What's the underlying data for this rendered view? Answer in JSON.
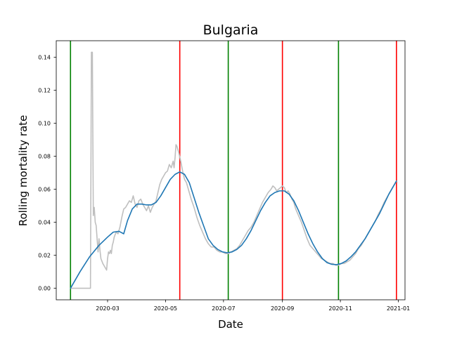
{
  "chart_data": {
    "type": "line",
    "title": "Bulgaria",
    "xlabel": "Date",
    "ylabel": "Rolling mortality rate",
    "x_range": [
      "2020-01-07",
      "2021-01-08"
    ],
    "ylim": [
      -0.007,
      0.15
    ],
    "x_ticks": [
      {
        "date": "2020-03-01",
        "label": "2020-03"
      },
      {
        "date": "2020-05-01",
        "label": "2020-05"
      },
      {
        "date": "2020-07-01",
        "label": "2020-07"
      },
      {
        "date": "2020-09-01",
        "label": "2020-09"
      },
      {
        "date": "2020-11-01",
        "label": "2020-11"
      },
      {
        "date": "2021-01-01",
        "label": "2021-01"
      }
    ],
    "y_ticks": [
      {
        "value": 0.0,
        "label": "0.00"
      },
      {
        "value": 0.02,
        "label": "0.02"
      },
      {
        "value": 0.04,
        "label": "0.04"
      },
      {
        "value": 0.06,
        "label": "0.06"
      },
      {
        "value": 0.08,
        "label": "0.08"
      },
      {
        "value": 0.1,
        "label": "0.10"
      },
      {
        "value": 0.12,
        "label": "0.12"
      },
      {
        "value": 0.14,
        "label": "0.14"
      }
    ],
    "grid": false,
    "series": [
      {
        "color": "#bfbfbf",
        "points": [
          [
            "2020-01-22",
            0.0
          ],
          [
            "2020-02-12",
            0.0
          ],
          [
            "2020-02-13",
            0.143
          ],
          [
            "2020-02-14",
            0.143
          ],
          [
            "2020-02-15",
            0.044
          ],
          [
            "2020-02-16",
            0.049
          ],
          [
            "2020-02-17",
            0.04
          ],
          [
            "2020-02-18",
            0.038
          ],
          [
            "2020-02-19",
            0.03
          ],
          [
            "2020-02-20",
            0.022
          ],
          [
            "2020-02-21",
            0.03
          ],
          [
            "2020-02-22",
            0.023
          ],
          [
            "2020-02-23",
            0.018
          ],
          [
            "2020-02-25",
            0.015
          ],
          [
            "2020-02-27",
            0.013
          ],
          [
            "2020-02-29",
            0.011
          ],
          [
            "2020-03-01",
            0.018
          ],
          [
            "2020-03-02",
            0.022
          ],
          [
            "2020-03-03",
            0.021
          ],
          [
            "2020-03-04",
            0.023
          ],
          [
            "2020-03-05",
            0.021
          ],
          [
            "2020-03-06",
            0.026
          ],
          [
            "2020-03-07",
            0.028
          ],
          [
            "2020-03-08",
            0.031
          ],
          [
            "2020-03-10",
            0.034
          ],
          [
            "2020-03-12",
            0.033
          ],
          [
            "2020-03-14",
            0.037
          ],
          [
            "2020-03-16",
            0.043
          ],
          [
            "2020-03-18",
            0.048
          ],
          [
            "2020-03-20",
            0.049
          ],
          [
            "2020-03-22",
            0.051
          ],
          [
            "2020-03-24",
            0.053
          ],
          [
            "2020-03-26",
            0.052
          ],
          [
            "2020-03-28",
            0.056
          ],
          [
            "2020-03-30",
            0.051
          ],
          [
            "2020-04-01",
            0.049
          ],
          [
            "2020-04-03",
            0.053
          ],
          [
            "2020-04-05",
            0.054
          ],
          [
            "2020-04-07",
            0.051
          ],
          [
            "2020-04-09",
            0.049
          ],
          [
            "2020-04-11",
            0.047
          ],
          [
            "2020-04-13",
            0.05
          ],
          [
            "2020-04-15",
            0.046
          ],
          [
            "2020-04-17",
            0.049
          ],
          [
            "2020-04-19",
            0.051
          ],
          [
            "2020-04-21",
            0.053
          ],
          [
            "2020-04-23",
            0.058
          ],
          [
            "2020-04-25",
            0.063
          ],
          [
            "2020-04-27",
            0.066
          ],
          [
            "2020-04-29",
            0.068
          ],
          [
            "2020-05-01",
            0.07
          ],
          [
            "2020-05-03",
            0.071
          ],
          [
            "2020-05-05",
            0.075
          ],
          [
            "2020-05-07",
            0.073
          ],
          [
            "2020-05-09",
            0.077
          ],
          [
            "2020-05-10",
            0.073
          ],
          [
            "2020-05-11",
            0.079
          ],
          [
            "2020-05-12",
            0.087
          ],
          [
            "2020-05-13",
            0.086
          ],
          [
            "2020-05-15",
            0.082
          ],
          [
            "2020-05-17",
            0.077
          ],
          [
            "2020-05-19",
            0.071
          ],
          [
            "2020-05-21",
            0.066
          ],
          [
            "2020-05-23",
            0.064
          ],
          [
            "2020-05-25",
            0.06
          ],
          [
            "2020-05-28",
            0.054
          ],
          [
            "2020-05-31",
            0.049
          ],
          [
            "2020-06-03",
            0.043
          ],
          [
            "2020-06-06",
            0.038
          ],
          [
            "2020-06-09",
            0.034
          ],
          [
            "2020-06-12",
            0.03
          ],
          [
            "2020-06-15",
            0.027
          ],
          [
            "2020-06-18",
            0.025
          ],
          [
            "2020-06-21",
            0.025
          ],
          [
            "2020-06-24",
            0.023
          ],
          [
            "2020-06-27",
            0.022
          ],
          [
            "2020-06-30",
            0.022
          ],
          [
            "2020-07-03",
            0.021
          ],
          [
            "2020-07-06",
            0.021
          ],
          [
            "2020-07-09",
            0.022
          ],
          [
            "2020-07-12",
            0.023
          ],
          [
            "2020-07-15",
            0.024
          ],
          [
            "2020-07-18",
            0.026
          ],
          [
            "2020-07-21",
            0.029
          ],
          [
            "2020-07-24",
            0.032
          ],
          [
            "2020-07-27",
            0.035
          ],
          [
            "2020-07-30",
            0.037
          ],
          [
            "2020-08-02",
            0.04
          ],
          [
            "2020-08-05",
            0.044
          ],
          [
            "2020-08-08",
            0.048
          ],
          [
            "2020-08-11",
            0.052
          ],
          [
            "2020-08-14",
            0.055
          ],
          [
            "2020-08-17",
            0.058
          ],
          [
            "2020-08-20",
            0.06
          ],
          [
            "2020-08-22",
            0.062
          ],
          [
            "2020-08-24",
            0.061
          ],
          [
            "2020-08-26",
            0.059
          ],
          [
            "2020-08-28",
            0.06
          ],
          [
            "2020-08-30",
            0.061
          ],
          [
            "2020-09-01",
            0.062
          ],
          [
            "2020-09-03",
            0.061
          ],
          [
            "2020-09-05",
            0.058
          ],
          [
            "2020-09-07",
            0.059
          ],
          [
            "2020-09-09",
            0.057
          ],
          [
            "2020-09-11",
            0.054
          ],
          [
            "2020-09-13",
            0.052
          ],
          [
            "2020-09-15",
            0.048
          ],
          [
            "2020-09-18",
            0.044
          ],
          [
            "2020-09-21",
            0.04
          ],
          [
            "2020-09-24",
            0.035
          ],
          [
            "2020-09-27",
            0.03
          ],
          [
            "2020-09-30",
            0.026
          ],
          [
            "2020-10-03",
            0.024
          ],
          [
            "2020-10-06",
            0.022
          ],
          [
            "2020-10-09",
            0.02
          ],
          [
            "2020-10-12",
            0.018
          ],
          [
            "2020-10-15",
            0.017
          ],
          [
            "2020-10-18",
            0.016
          ],
          [
            "2020-10-21",
            0.015
          ],
          [
            "2020-10-24",
            0.015
          ],
          [
            "2020-10-27",
            0.014
          ],
          [
            "2020-10-30",
            0.014
          ],
          [
            "2020-11-02",
            0.015
          ],
          [
            "2020-11-05",
            0.015
          ],
          [
            "2020-11-08",
            0.016
          ],
          [
            "2020-11-11",
            0.017
          ],
          [
            "2020-11-14",
            0.019
          ],
          [
            "2020-11-17",
            0.021
          ],
          [
            "2020-11-20",
            0.024
          ],
          [
            "2020-11-23",
            0.026
          ],
          [
            "2020-11-26",
            0.029
          ],
          [
            "2020-11-29",
            0.032
          ],
          [
            "2020-12-02",
            0.035
          ],
          [
            "2020-12-05",
            0.038
          ],
          [
            "2020-12-08",
            0.041
          ],
          [
            "2020-12-11",
            0.045
          ],
          [
            "2020-12-14",
            0.048
          ],
          [
            "2020-12-17",
            0.052
          ],
          [
            "2020-12-20",
            0.055
          ],
          [
            "2020-12-23",
            0.058
          ],
          [
            "2020-12-26",
            0.061
          ],
          [
            "2020-12-29",
            0.064
          ],
          [
            "2020-12-30",
            0.065
          ]
        ]
      },
      {
        "color": "#1f77b4",
        "points": [
          [
            "2020-01-22",
            0.0
          ],
          [
            "2020-02-01",
            0.01
          ],
          [
            "2020-02-11",
            0.019
          ],
          [
            "2020-02-21",
            0.026
          ],
          [
            "2020-03-01",
            0.031
          ],
          [
            "2020-03-07",
            0.034
          ],
          [
            "2020-03-13",
            0.0345
          ],
          [
            "2020-03-18",
            0.033
          ],
          [
            "2020-03-22",
            0.041
          ],
          [
            "2020-03-27",
            0.048
          ],
          [
            "2020-04-01",
            0.051
          ],
          [
            "2020-04-06",
            0.051
          ],
          [
            "2020-04-11",
            0.0505
          ],
          [
            "2020-04-16",
            0.0505
          ],
          [
            "2020-04-21",
            0.052
          ],
          [
            "2020-04-26",
            0.056
          ],
          [
            "2020-05-01",
            0.061
          ],
          [
            "2020-05-06",
            0.066
          ],
          [
            "2020-05-11",
            0.069
          ],
          [
            "2020-05-16",
            0.0705
          ],
          [
            "2020-05-21",
            0.069
          ],
          [
            "2020-05-26",
            0.064
          ],
          [
            "2020-05-31",
            0.055
          ],
          [
            "2020-06-05",
            0.046
          ],
          [
            "2020-06-10",
            0.038
          ],
          [
            "2020-06-15",
            0.03
          ],
          [
            "2020-06-20",
            0.026
          ],
          [
            "2020-06-25",
            0.0235
          ],
          [
            "2020-06-30",
            0.022
          ],
          [
            "2020-07-05",
            0.0215
          ],
          [
            "2020-07-10",
            0.022
          ],
          [
            "2020-07-15",
            0.0235
          ],
          [
            "2020-07-20",
            0.026
          ],
          [
            "2020-07-25",
            0.03
          ],
          [
            "2020-07-30",
            0.035
          ],
          [
            "2020-08-04",
            0.041
          ],
          [
            "2020-08-09",
            0.047
          ],
          [
            "2020-08-14",
            0.052
          ],
          [
            "2020-08-19",
            0.056
          ],
          [
            "2020-08-24",
            0.058
          ],
          [
            "2020-08-29",
            0.059
          ],
          [
            "2020-09-03",
            0.059
          ],
          [
            "2020-09-08",
            0.057
          ],
          [
            "2020-09-13",
            0.053
          ],
          [
            "2020-09-18",
            0.047
          ],
          [
            "2020-09-23",
            0.04
          ],
          [
            "2020-09-28",
            0.033
          ],
          [
            "2020-10-03",
            0.027
          ],
          [
            "2020-10-08",
            0.022
          ],
          [
            "2020-10-13",
            0.018
          ],
          [
            "2020-10-18",
            0.0155
          ],
          [
            "2020-10-23",
            0.0145
          ],
          [
            "2020-10-28",
            0.0143
          ],
          [
            "2020-11-02",
            0.015
          ],
          [
            "2020-11-07",
            0.0165
          ],
          [
            "2020-11-12",
            0.019
          ],
          [
            "2020-11-17",
            0.022
          ],
          [
            "2020-11-22",
            0.026
          ],
          [
            "2020-11-27",
            0.03
          ],
          [
            "2020-12-02",
            0.035
          ],
          [
            "2020-12-07",
            0.04
          ],
          [
            "2020-12-12",
            0.045
          ],
          [
            "2020-12-17",
            0.051
          ],
          [
            "2020-12-22",
            0.057
          ],
          [
            "2020-12-30",
            0.065
          ]
        ]
      }
    ],
    "vertical_lines": [
      {
        "date": "2020-01-22",
        "color": "#008000"
      },
      {
        "date": "2020-05-16",
        "color": "#ff0000"
      },
      {
        "date": "2020-07-06",
        "color": "#008000"
      },
      {
        "date": "2020-09-01",
        "color": "#ff0000"
      },
      {
        "date": "2020-10-30",
        "color": "#008000"
      },
      {
        "date": "2020-12-30",
        "color": "#ff0000"
      }
    ]
  }
}
